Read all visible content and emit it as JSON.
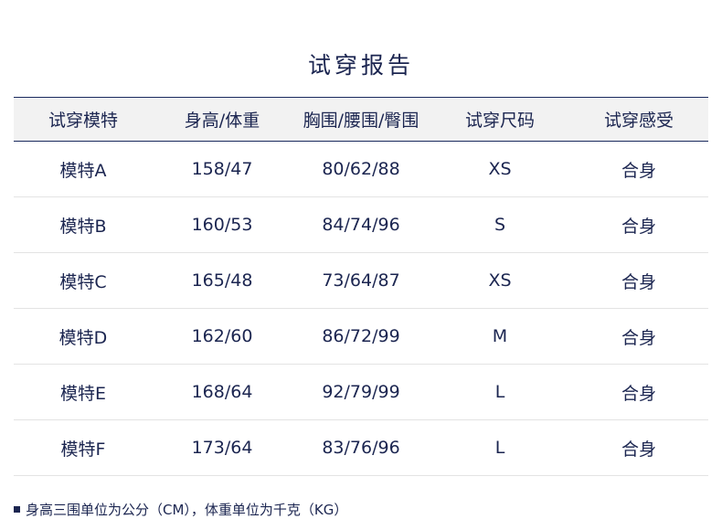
{
  "title": "试穿报告",
  "table": {
    "headers": [
      "试穿模特",
      "身高/体重",
      "胸围/腰围/臀围",
      "试穿尺码",
      "试穿感受"
    ],
    "rows": [
      [
        "模特A",
        "158/47",
        "80/62/88",
        "XS",
        "合身"
      ],
      [
        "模特B",
        "160/53",
        "84/74/96",
        "S",
        "合身"
      ],
      [
        "模特C",
        "165/48",
        "73/64/87",
        "XS",
        "合身"
      ],
      [
        "模特D",
        "162/60",
        "86/72/99",
        "M",
        "合身"
      ],
      [
        "模特E",
        "168/64",
        "92/79/99",
        "L",
        "合身"
      ],
      [
        "模特F",
        "173/64",
        "83/76/96",
        "L",
        "合身"
      ]
    ]
  },
  "note": "身高三围单位为公分（CM），体重单位为千克（KG）"
}
